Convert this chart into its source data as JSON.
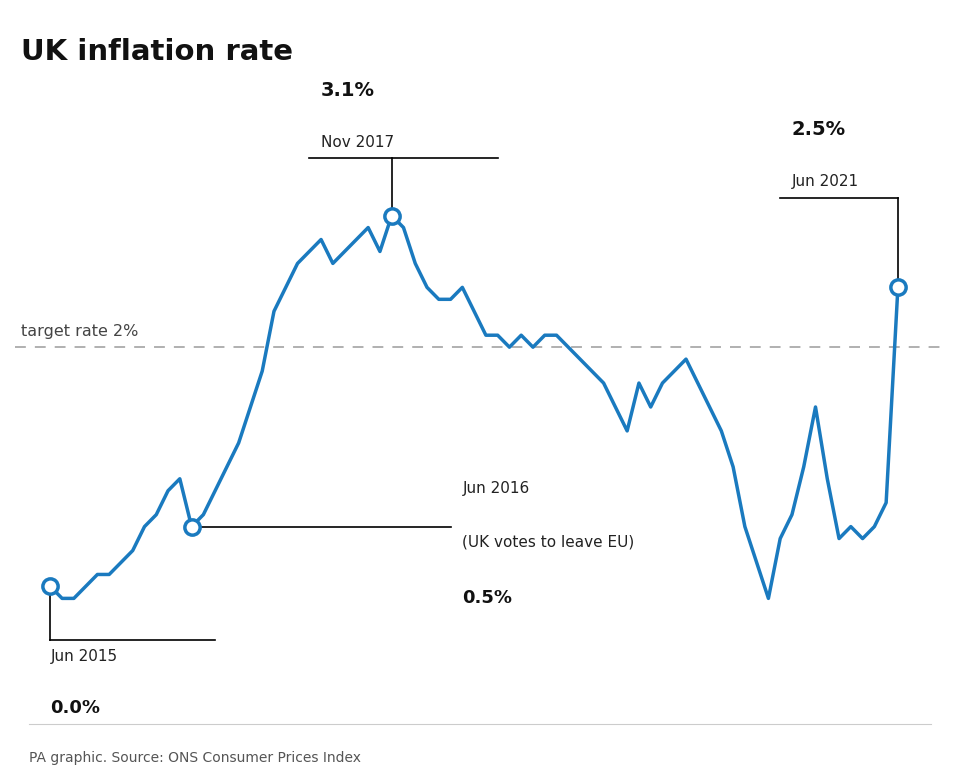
{
  "title": "UK inflation rate",
  "source": "PA graphic. Source: ONS Consumer Prices Index",
  "target_rate": 2.0,
  "target_rate_label": "target rate 2%",
  "line_color": "#1a7abf",
  "background_color": "#ffffff",
  "data": [
    0.0,
    -0.1,
    -0.1,
    0.0,
    0.1,
    0.1,
    0.2,
    0.3,
    0.5,
    0.6,
    0.8,
    0.9,
    0.5,
    0.6,
    0.8,
    1.0,
    1.2,
    1.5,
    1.8,
    2.3,
    2.5,
    2.7,
    2.8,
    2.9,
    2.7,
    2.8,
    2.9,
    3.0,
    2.8,
    3.1,
    3.0,
    2.7,
    2.5,
    2.4,
    2.4,
    2.5,
    2.3,
    2.1,
    2.1,
    2.0,
    2.1,
    2.0,
    2.1,
    2.1,
    2.0,
    1.9,
    1.8,
    1.7,
    1.5,
    1.3,
    1.7,
    1.5,
    1.7,
    1.8,
    1.9,
    1.7,
    1.5,
    1.3,
    1.0,
    0.5,
    0.2,
    -0.1,
    0.4,
    0.6,
    1.0,
    1.5,
    0.9,
    0.4,
    0.5,
    0.4,
    0.5,
    0.7,
    2.5
  ],
  "annotated_indices": [
    0,
    12,
    29,
    72
  ],
  "annotated_values": [
    0.0,
    0.5,
    3.1,
    2.5
  ],
  "ylim_low": -1.0,
  "ylim_high": 4.3
}
